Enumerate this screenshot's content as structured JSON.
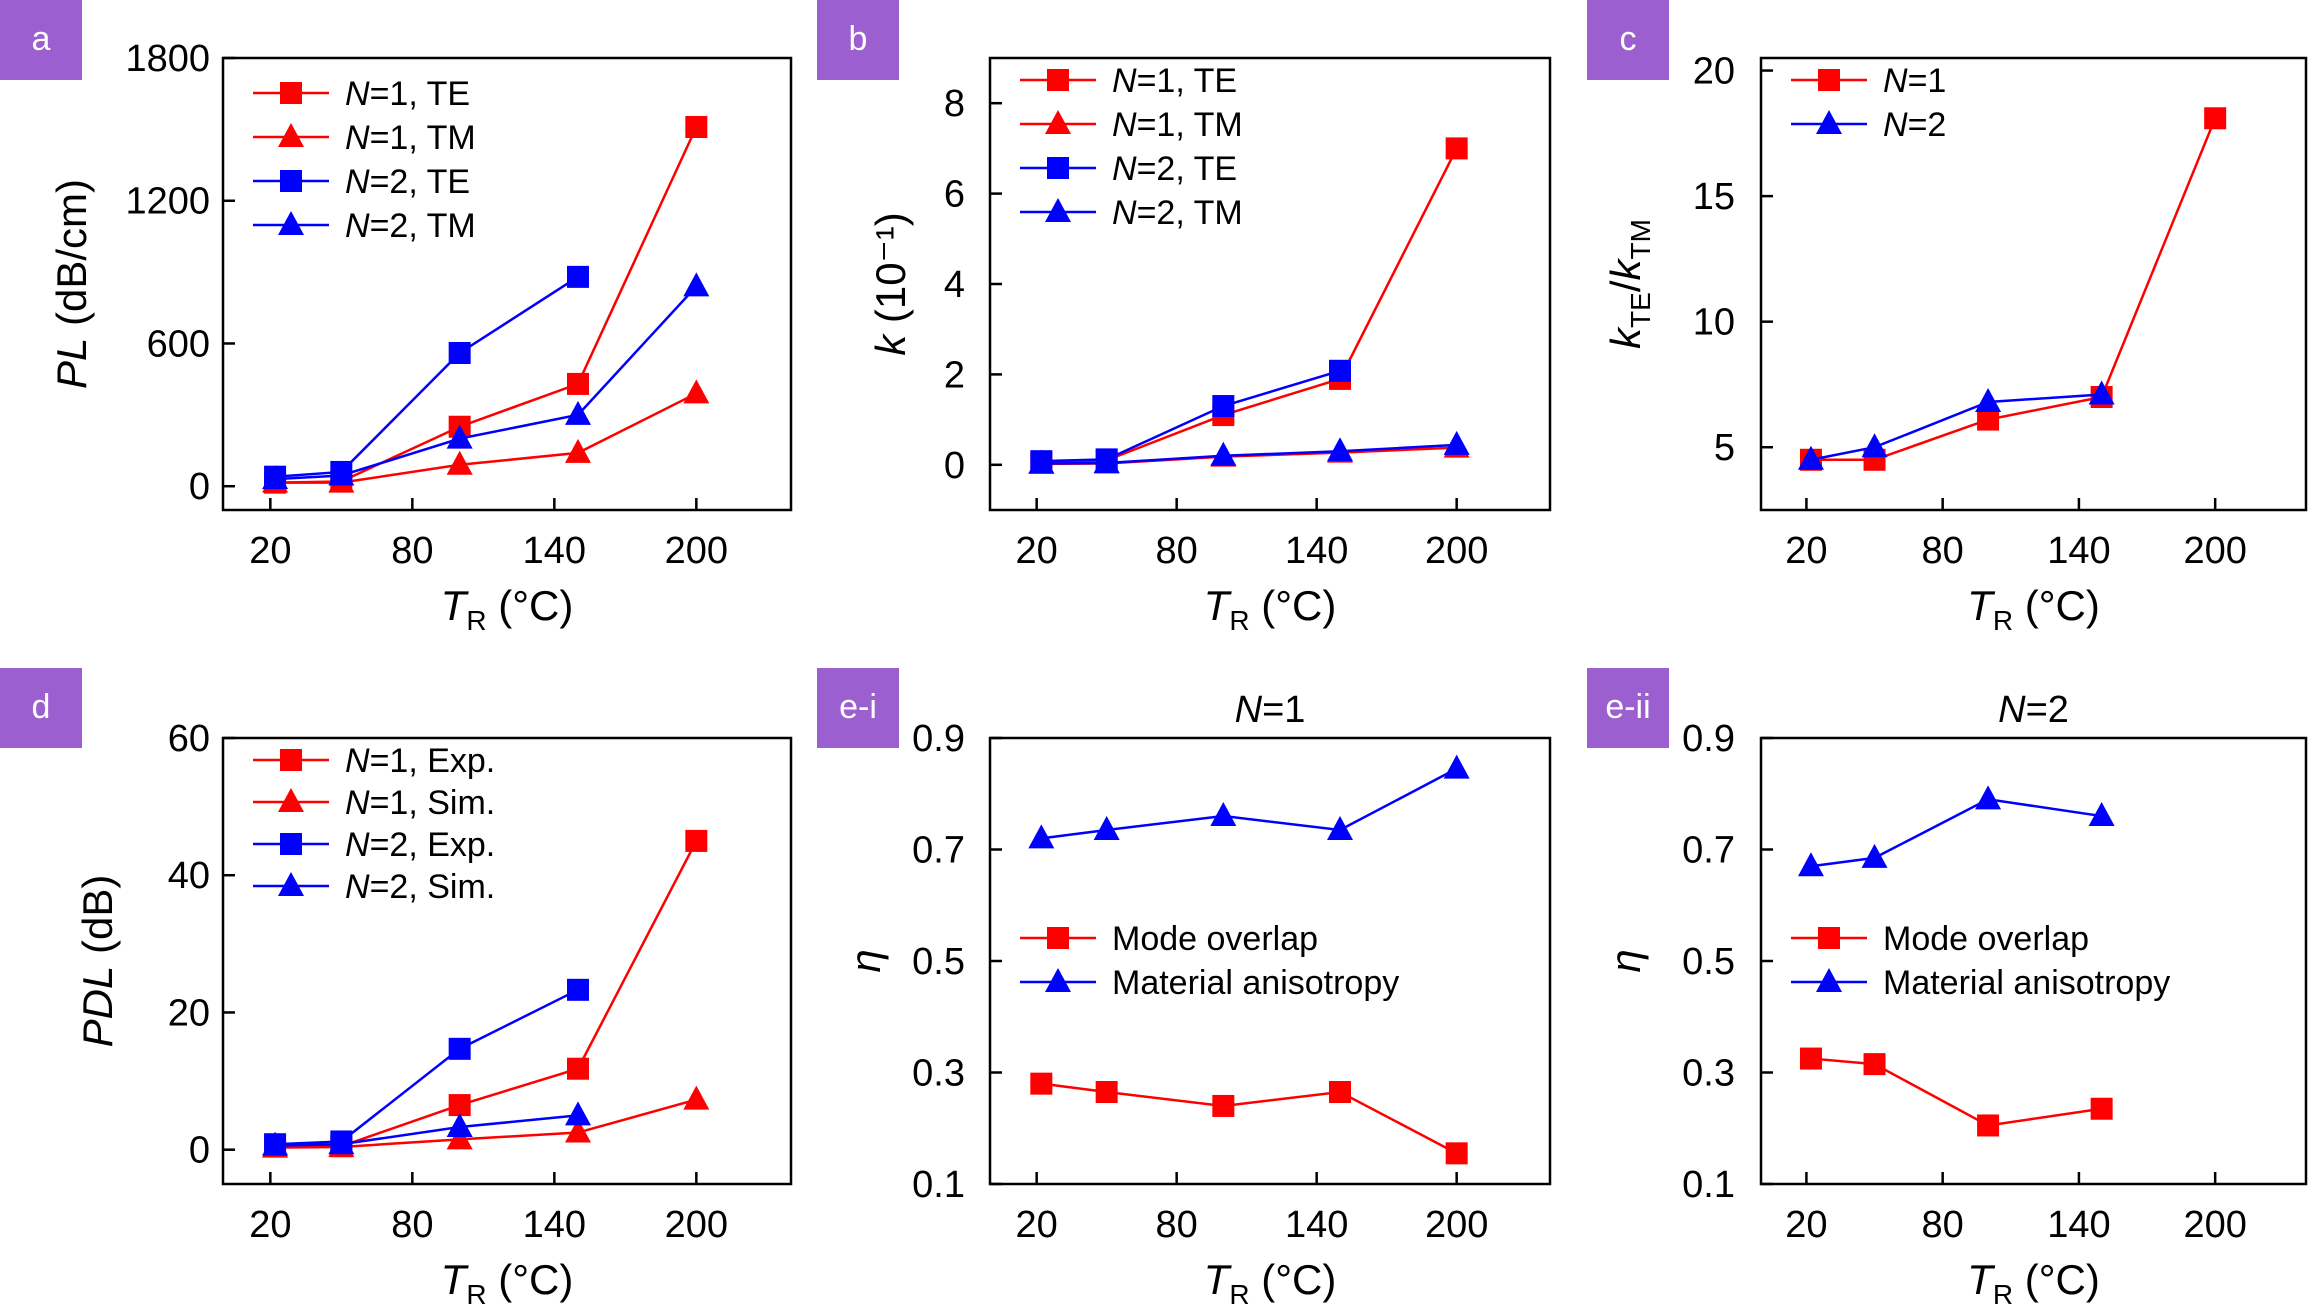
{
  "chart_data": [
    {
      "panel": "a",
      "type": "line",
      "xlabel": {
        "main": "T",
        "sub": "R",
        "unit": " (°C)"
      },
      "ylabel": {
        "main": "PL",
        "unit": " (dB/cm)"
      },
      "xlim": [
        0,
        240
      ],
      "ylim": [
        -100,
        1800
      ],
      "xticks": [
        20,
        80,
        140,
        200
      ],
      "yticks": [
        0,
        600,
        1200,
        1800
      ],
      "legend": "top-left",
      "series": [
        {
          "name": "N=1, TE",
          "legend_main": "N",
          "legend_rest": "=1, TE",
          "color": "#ff0000",
          "marker": "square",
          "x": [
            22,
            50,
            100,
            150,
            200
          ],
          "y": [
            15,
            20,
            250,
            430,
            1510
          ]
        },
        {
          "name": "N=1, TM",
          "legend_main": "N",
          "legend_rest": "=1, TM",
          "color": "#ff0000",
          "marker": "triangle",
          "x": [
            22,
            50,
            100,
            150,
            200
          ],
          "y": [
            15,
            15,
            90,
            140,
            390
          ]
        },
        {
          "name": "N=2, TE",
          "legend_main": "N",
          "legend_rest": "=2, TE",
          "color": "#0000ff",
          "marker": "square",
          "x": [
            22,
            50,
            100,
            150
          ],
          "y": [
            40,
            60,
            560,
            880
          ]
        },
        {
          "name": "N=2, TM",
          "legend_main": "N",
          "legend_rest": "=2, TM",
          "color": "#0000ff",
          "marker": "triangle",
          "x": [
            22,
            50,
            100,
            150,
            200
          ],
          "y": [
            30,
            45,
            200,
            300,
            840
          ]
        }
      ]
    },
    {
      "panel": "b",
      "type": "line",
      "xlabel": {
        "main": "T",
        "sub": "R",
        "unit": " (°C)"
      },
      "ylabel": {
        "main": "k",
        "unit": " (10⁻¹)"
      },
      "xlim": [
        0,
        240
      ],
      "ylim": [
        -1,
        9
      ],
      "xticks": [
        20,
        80,
        140,
        200
      ],
      "yticks": [
        0,
        2,
        4,
        6,
        8
      ],
      "legend": "top-left",
      "series": [
        {
          "name": "N=1, TE",
          "legend_main": "N",
          "legend_rest": "=1, TE",
          "color": "#ff0000",
          "marker": "square",
          "x": [
            22,
            50,
            100,
            150,
            200
          ],
          "y": [
            0.05,
            0.1,
            1.1,
            1.9,
            7.0
          ]
        },
        {
          "name": "N=1, TM",
          "legend_main": "N",
          "legend_rest": "=1, TM",
          "color": "#ff0000",
          "marker": "triangle",
          "x": [
            22,
            50,
            100,
            150,
            200
          ],
          "y": [
            0.02,
            0.03,
            0.18,
            0.27,
            0.38
          ]
        },
        {
          "name": "N=2, TE",
          "legend_main": "N",
          "legend_rest": "=2, TE",
          "color": "#0000ff",
          "marker": "square",
          "x": [
            22,
            50,
            100,
            150
          ],
          "y": [
            0.08,
            0.12,
            1.3,
            2.08
          ]
        },
        {
          "name": "N=2, TM",
          "legend_main": "N",
          "legend_rest": "=2, TM",
          "color": "#0000ff",
          "marker": "triangle",
          "x": [
            22,
            50,
            100,
            150,
            200
          ],
          "y": [
            0.03,
            0.04,
            0.2,
            0.3,
            0.44
          ]
        }
      ]
    },
    {
      "panel": "c",
      "type": "line",
      "xlabel": {
        "main": "T",
        "sub": "R",
        "unit": " (°C)"
      },
      "ylabel": {
        "main": "k",
        "sub": "TE",
        "sep": "/",
        "main2": "k",
        "sub2": "TM"
      },
      "xlim": [
        0,
        240
      ],
      "ylim": [
        2.5,
        20.5
      ],
      "xticks": [
        20,
        80,
        140,
        200
      ],
      "yticks": [
        5,
        10,
        15,
        20
      ],
      "legend": "top-left",
      "series": [
        {
          "name": "N=1",
          "legend_main": "N",
          "legend_rest": "=1",
          "color": "#ff0000",
          "marker": "square",
          "x": [
            22,
            50,
            100,
            150,
            200
          ],
          "y": [
            4.5,
            4.5,
            6.1,
            7.0,
            18.1
          ]
        },
        {
          "name": "N=2",
          "legend_main": "N",
          "legend_rest": "=2",
          "color": "#0000ff",
          "marker": "triangle",
          "x": [
            22,
            50,
            100,
            150
          ],
          "y": [
            4.5,
            5.0,
            6.8,
            7.1
          ]
        }
      ]
    },
    {
      "panel": "d",
      "type": "line",
      "xlabel": {
        "main": "T",
        "sub": "R",
        "unit": " (°C)"
      },
      "ylabel": {
        "main": "PDL",
        "unit": " (dB)"
      },
      "xlim": [
        0,
        240
      ],
      "ylim": [
        -5,
        60
      ],
      "xticks": [
        20,
        80,
        140,
        200
      ],
      "yticks": [
        0,
        20,
        40,
        60
      ],
      "legend": "top-left",
      "series": [
        {
          "name": "N=1, Exp.",
          "legend_main": "N",
          "legend_rest": "=1, Exp.",
          "color": "#ff0000",
          "marker": "square",
          "x": [
            22,
            50,
            100,
            150,
            200
          ],
          "y": [
            0.5,
            0.5,
            6.5,
            11.8,
            45
          ]
        },
        {
          "name": "N=1, Sim.",
          "legend_main": "N",
          "legend_rest": "=1, Sim.",
          "color": "#ff0000",
          "marker": "triangle",
          "x": [
            22,
            50,
            100,
            150,
            200
          ],
          "y": [
            0.3,
            0.4,
            1.5,
            2.5,
            7.3
          ]
        },
        {
          "name": "N=2, Exp.",
          "legend_main": "N",
          "legend_rest": "=2, Exp.",
          "color": "#0000ff",
          "marker": "square",
          "x": [
            22,
            50,
            100,
            150
          ],
          "y": [
            0.8,
            1.2,
            14.7,
            23.3
          ]
        },
        {
          "name": "N=2, Sim.",
          "legend_main": "N",
          "legend_rest": "=2, Sim.",
          "color": "#0000ff",
          "marker": "triangle",
          "x": [
            22,
            50,
            100,
            150
          ],
          "y": [
            0.6,
            0.8,
            3.3,
            5.0
          ]
        }
      ]
    },
    {
      "panel": "e-i",
      "type": "line",
      "title": {
        "main": "N",
        "rest": "=1"
      },
      "xlabel": {
        "main": "T",
        "sub": "R",
        "unit": " (°C)"
      },
      "ylabel": {
        "main": "η"
      },
      "xlim": [
        0,
        240
      ],
      "ylim": [
        0.1,
        0.9
      ],
      "xticks": [
        20,
        80,
        140,
        200
      ],
      "yticks": [
        0.1,
        0.3,
        0.5,
        0.7,
        0.9
      ],
      "legend": "center-left",
      "series": [
        {
          "name": "Mode overlap",
          "legend_main": "",
          "legend_rest": "Mode overlap",
          "color": "#ff0000",
          "marker": "square",
          "x": [
            22,
            50,
            100,
            150,
            200
          ],
          "y": [
            0.28,
            0.265,
            0.24,
            0.265,
            0.155
          ]
        },
        {
          "name": "Material anisotropy",
          "legend_main": "",
          "legend_rest": "Material anisotropy",
          "color": "#0000ff",
          "marker": "triangle",
          "x": [
            22,
            50,
            100,
            150,
            200
          ],
          "y": [
            0.72,
            0.735,
            0.76,
            0.735,
            0.845
          ]
        }
      ]
    },
    {
      "panel": "e-ii",
      "type": "line",
      "title": {
        "main": "N",
        "rest": "=2"
      },
      "xlabel": {
        "main": "T",
        "sub": "R",
        "unit": " (°C)"
      },
      "ylabel": {
        "main": "η"
      },
      "xlim": [
        0,
        240
      ],
      "ylim": [
        0.1,
        0.9
      ],
      "xticks": [
        20,
        80,
        140,
        200
      ],
      "yticks": [
        0.1,
        0.3,
        0.5,
        0.7,
        0.9
      ],
      "legend": "center-left",
      "series": [
        {
          "name": "Mode overlap",
          "legend_main": "",
          "legend_rest": "Mode overlap",
          "color": "#ff0000",
          "marker": "square",
          "x": [
            22,
            50,
            100,
            150
          ],
          "y": [
            0.325,
            0.315,
            0.205,
            0.235
          ]
        },
        {
          "name": "Material anisotropy",
          "legend_main": "",
          "legend_rest": "Material anisotropy",
          "color": "#0000ff",
          "marker": "triangle",
          "x": [
            22,
            50,
            100,
            150
          ],
          "y": [
            0.67,
            0.685,
            0.79,
            0.76
          ]
        }
      ]
    }
  ]
}
